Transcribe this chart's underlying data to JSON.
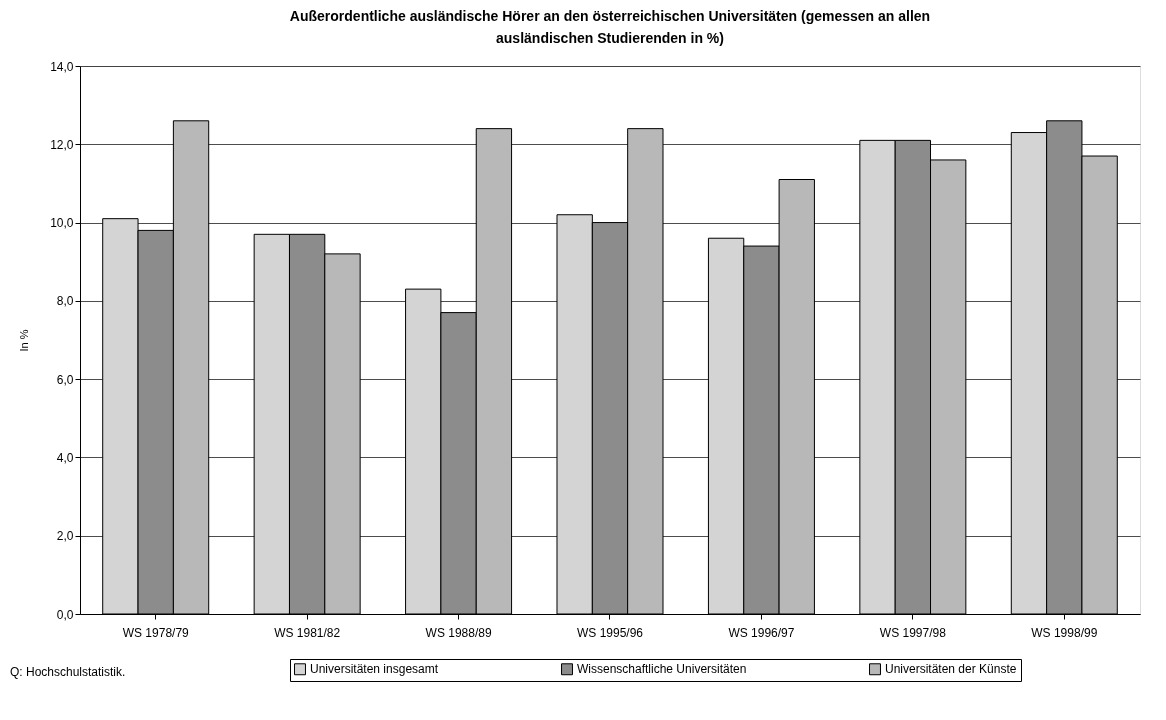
{
  "chart_data": {
    "type": "bar",
    "title": "Außerordentliche ausländische Hörer an den österreichischen Universitäten (gemessen an allen ausländischen Studierenden in %)",
    "ylabel": "In %",
    "categories": [
      "WS 1978/79",
      "WS 1981/82",
      "WS 1988/89",
      "WS 1995/96",
      "WS 1996/97",
      "WS 1997/98",
      "WS 1998/99"
    ],
    "series": [
      {
        "name": "Universitäten insgesamt",
        "color": "#d4d4d4",
        "values": [
          10.1,
          9.7,
          8.3,
          10.2,
          9.6,
          12.1,
          12.3
        ]
      },
      {
        "name": "Wissenschaftliche Universitäten",
        "color": "#8c8c8c",
        "values": [
          9.8,
          9.7,
          7.7,
          10.0,
          9.4,
          12.1,
          12.6
        ]
      },
      {
        "name": "Universitäten der Künste",
        "color": "#b8b8b8",
        "values": [
          12.6,
          9.2,
          12.4,
          12.4,
          11.1,
          11.6,
          11.7
        ]
      }
    ],
    "ylim": [
      0,
      14
    ],
    "yticks": [
      {
        "value": 0,
        "label": "0,0"
      },
      {
        "value": 2,
        "label": "2,0"
      },
      {
        "value": 4,
        "label": "4,0"
      },
      {
        "value": 6,
        "label": "6,0"
      },
      {
        "value": 8,
        "label": "8,0"
      },
      {
        "value": 10,
        "label": "10,0"
      },
      {
        "value": 12,
        "label": "12,0"
      },
      {
        "value": 14,
        "label": "14,0"
      }
    ],
    "grid": "y",
    "legend": "bottom",
    "annotations": [
      "Q: Hochschulstatistik."
    ]
  }
}
